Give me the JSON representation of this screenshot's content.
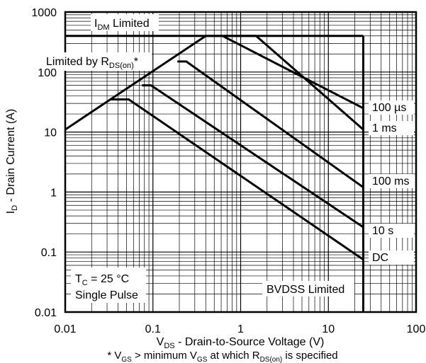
{
  "chart_data": {
    "type": "line",
    "title": "",
    "xlabel": "V_DS - Drain-to-Source Voltage (V)",
    "ylabel": "I_D - Drain Current (A)",
    "xscale": "log",
    "yscale": "log",
    "xlim": [
      0.01,
      100
    ],
    "ylim": [
      0.01,
      1000
    ],
    "grid": true,
    "x_ticks": [
      "0.01",
      "0.1",
      "1",
      "10",
      "100"
    ],
    "y_ticks": [
      "0.01",
      "0.1",
      "1",
      "10",
      "100",
      "1000"
    ],
    "limit_lines": [
      {
        "name": "I_DM Limited",
        "type": "horizontal",
        "y": 400
      },
      {
        "name": "Limited by R_DS(on)*",
        "type": "diagonal",
        "points": [
          [
            0.01,
            11
          ],
          [
            0.4,
            400
          ]
        ]
      },
      {
        "name": "BVDSS Limited",
        "type": "vertical",
        "x": 25
      }
    ],
    "series": [
      {
        "name": "100 µs",
        "points": [
          [
            0.62,
            400
          ],
          [
            25,
            25
          ]
        ]
      },
      {
        "name": "1 ms",
        "points": [
          [
            0.4,
            400
          ],
          [
            1.5,
            400
          ],
          [
            25,
            11
          ]
        ]
      },
      {
        "name": "100 ms",
        "points": [
          [
            0.19,
            150
          ],
          [
            0.24,
            150
          ],
          [
            25,
            1.2
          ]
        ]
      },
      {
        "name": "10 s",
        "points": [
          [
            0.075,
            60
          ],
          [
            0.095,
            60
          ],
          [
            25,
            0.26
          ]
        ]
      },
      {
        "name": "DC",
        "points": [
          [
            0.033,
            35
          ],
          [
            0.053,
            35
          ],
          [
            25,
            0.075
          ]
        ]
      }
    ],
    "annotations": {
      "conditions_line1": "T_C = 25 °C",
      "conditions_line2": "Single Pulse"
    },
    "footnote": "* V_GS > minimum V_GS at which R_DS(on) is specified"
  }
}
